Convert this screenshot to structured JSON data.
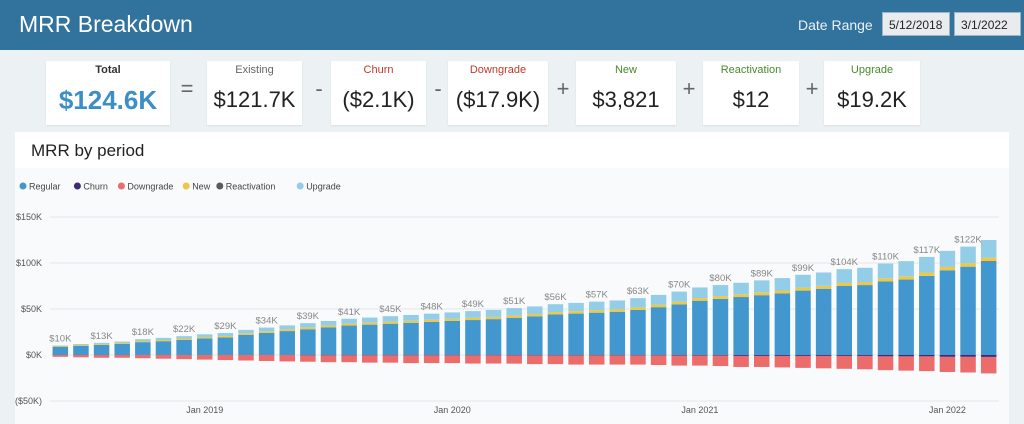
{
  "header": {
    "title": "MRR Breakdown",
    "date_range_label": "Date Range",
    "date_start": "5/12/2018",
    "date_end": "3/1/2022"
  },
  "kpis": {
    "total": {
      "label": "Total",
      "value": "$124.6K"
    },
    "existing": {
      "label": "Existing",
      "value": "$121.7K",
      "color": "#666666"
    },
    "churn": {
      "label": "Churn",
      "value": "($2.1K)",
      "color": "#c0392b"
    },
    "downgrade": {
      "label": "Downgrade",
      "value": "($17.9K)",
      "color": "#c0392b"
    },
    "new": {
      "label": "New",
      "value": "$3,821",
      "color": "#4a8a2a"
    },
    "reactivation": {
      "label": "Reactivation",
      "value": "$12",
      "color": "#4a8a2a"
    },
    "upgrade": {
      "label": "Upgrade",
      "value": "$19.2K",
      "color": "#4a8a2a"
    },
    "operators": [
      "=",
      "-",
      "-",
      "+",
      "+",
      "+"
    ]
  },
  "chart_panel": {
    "title": "MRR by period"
  },
  "chart_data": {
    "type": "bar",
    "stacked": true,
    "colors": {
      "Regular": "#4397cf",
      "Churn": "#3f2a78",
      "Downgrade": "#ec6b6b",
      "New": "#ecc843",
      "Reactivation": "#5b5b5b",
      "Upgrade": "#94cde8"
    },
    "legend": [
      "Regular",
      "Churn",
      "Downgrade",
      "New",
      "Reactivation",
      "Upgrade"
    ],
    "legend_position": "top-left",
    "y_ticks": [
      "$150K",
      "$100K",
      "$50K",
      "$0K",
      "($50K)"
    ],
    "y_tick_values": [
      150,
      100,
      50,
      0,
      -50
    ],
    "ylim": [
      -50,
      150
    ],
    "y_units": "thousands USD",
    "x_tick_labels": [
      "Jan 2019",
      "Jan 2020",
      "Jan 2021",
      "Jan 2022"
    ],
    "x_tick_indices": [
      7,
      19,
      31,
      43
    ],
    "categories_count": 46,
    "total_labels": [
      {
        "i": 0,
        "text": "$10K"
      },
      {
        "i": 2,
        "text": "$13K"
      },
      {
        "i": 4,
        "text": "$18K"
      },
      {
        "i": 6,
        "text": "$22K"
      },
      {
        "i": 8,
        "text": "$29K"
      },
      {
        "i": 10,
        "text": "$34K"
      },
      {
        "i": 12,
        "text": "$39K"
      },
      {
        "i": 14,
        "text": "$41K"
      },
      {
        "i": 16,
        "text": "$45K"
      },
      {
        "i": 18,
        "text": "$48K"
      },
      {
        "i": 20,
        "text": "$49K"
      },
      {
        "i": 22,
        "text": "$51K"
      },
      {
        "i": 24,
        "text": "$56K"
      },
      {
        "i": 26,
        "text": "$57K"
      },
      {
        "i": 28,
        "text": "$63K"
      },
      {
        "i": 30,
        "text": "$70K"
      },
      {
        "i": 32,
        "text": "$80K"
      },
      {
        "i": 34,
        "text": "$89K"
      },
      {
        "i": 36,
        "text": "$99K"
      },
      {
        "i": 38,
        "text": "$104K"
      },
      {
        "i": 40,
        "text": "$110K"
      },
      {
        "i": 42,
        "text": "$117K"
      },
      {
        "i": 44,
        "text": "$122K"
      }
    ],
    "series": [
      {
        "name": "Regular",
        "values": [
          9,
          10,
          11,
          12,
          14,
          15,
          16.5,
          18,
          19,
          22,
          24,
          26,
          28,
          30,
          32,
          33,
          34,
          35,
          36,
          37,
          38,
          39,
          40.5,
          42,
          44,
          45,
          46,
          47,
          49,
          52,
          55,
          59,
          61,
          63,
          65,
          67,
          70,
          72,
          75,
          76,
          80,
          82,
          86,
          92,
          96,
          102
        ]
      },
      {
        "name": "Churn",
        "values": [
          0,
          0,
          0,
          0,
          0,
          0,
          0,
          0,
          0,
          0,
          0,
          0,
          -0.3,
          -0.3,
          -0.3,
          -0.3,
          -0.3,
          -0.3,
          -0.3,
          -0.3,
          -0.3,
          -0.3,
          -0.4,
          -0.4,
          -0.4,
          -0.4,
          -0.4,
          -0.4,
          -0.4,
          -0.4,
          -0.5,
          -0.5,
          -0.5,
          -1,
          -1,
          -1,
          -1,
          -1,
          -1,
          -1,
          -1.5,
          -1.5,
          -1.5,
          -2,
          -2,
          -2.1
        ]
      },
      {
        "name": "Downgrade",
        "values": [
          -2,
          -2.5,
          -3,
          -3,
          -3.5,
          -4,
          -4.5,
          -5,
          -5.5,
          -6,
          -6.5,
          -7,
          -7,
          -7.5,
          -7.5,
          -8,
          -8,
          -8.5,
          -8.5,
          -8.5,
          -9,
          -9,
          -9,
          -9.5,
          -9.5,
          -10,
          -10,
          -10,
          -10,
          -10.5,
          -11,
          -11,
          -11.5,
          -12,
          -12,
          -12.5,
          -13,
          -13.5,
          -14,
          -14.5,
          -15,
          -15.5,
          -16,
          -16.5,
          -17,
          -17.9
        ]
      },
      {
        "name": "New",
        "values": [
          0.8,
          0.9,
          1,
          1.1,
          1.2,
          1.3,
          1.4,
          1.5,
          1.6,
          1.7,
          1.8,
          1.9,
          2,
          2,
          2.1,
          2.1,
          2.2,
          2.2,
          2.3,
          2.3,
          2.4,
          2.4,
          2.5,
          2.5,
          2.6,
          2.6,
          2.7,
          2.7,
          2.8,
          2.8,
          2.9,
          2.9,
          3,
          3,
          3.1,
          3.1,
          3.2,
          3.2,
          3.3,
          3.3,
          3.4,
          3.5,
          3.6,
          3.7,
          3.8,
          3.8
        ]
      },
      {
        "name": "Reactivation",
        "values": [
          0,
          0,
          0,
          0,
          0,
          0,
          0,
          0,
          0,
          0,
          0,
          0,
          0,
          0,
          0,
          0,
          0,
          0,
          0,
          0,
          0,
          0,
          0,
          0,
          0,
          0,
          0,
          0,
          0,
          0,
          0,
          0,
          0,
          0,
          0,
          0,
          0,
          0,
          0,
          0,
          0,
          0,
          0,
          0,
          0,
          0.01
        ]
      },
      {
        "name": "Upgrade",
        "values": [
          0.5,
          1,
          1.2,
          1.5,
          2,
          2.3,
          2.6,
          3,
          3.3,
          3.6,
          4,
          4.3,
          4.6,
          5,
          5.3,
          5.6,
          6,
          6.3,
          6.6,
          7,
          7.3,
          7.6,
          8,
          8.3,
          8.6,
          9,
          9.3,
          9.6,
          10,
          10.5,
          11,
          11.5,
          12,
          12.5,
          13,
          13.5,
          14,
          14.5,
          15,
          15.5,
          16,
          16.5,
          17,
          17.5,
          18,
          19.2
        ]
      }
    ]
  }
}
